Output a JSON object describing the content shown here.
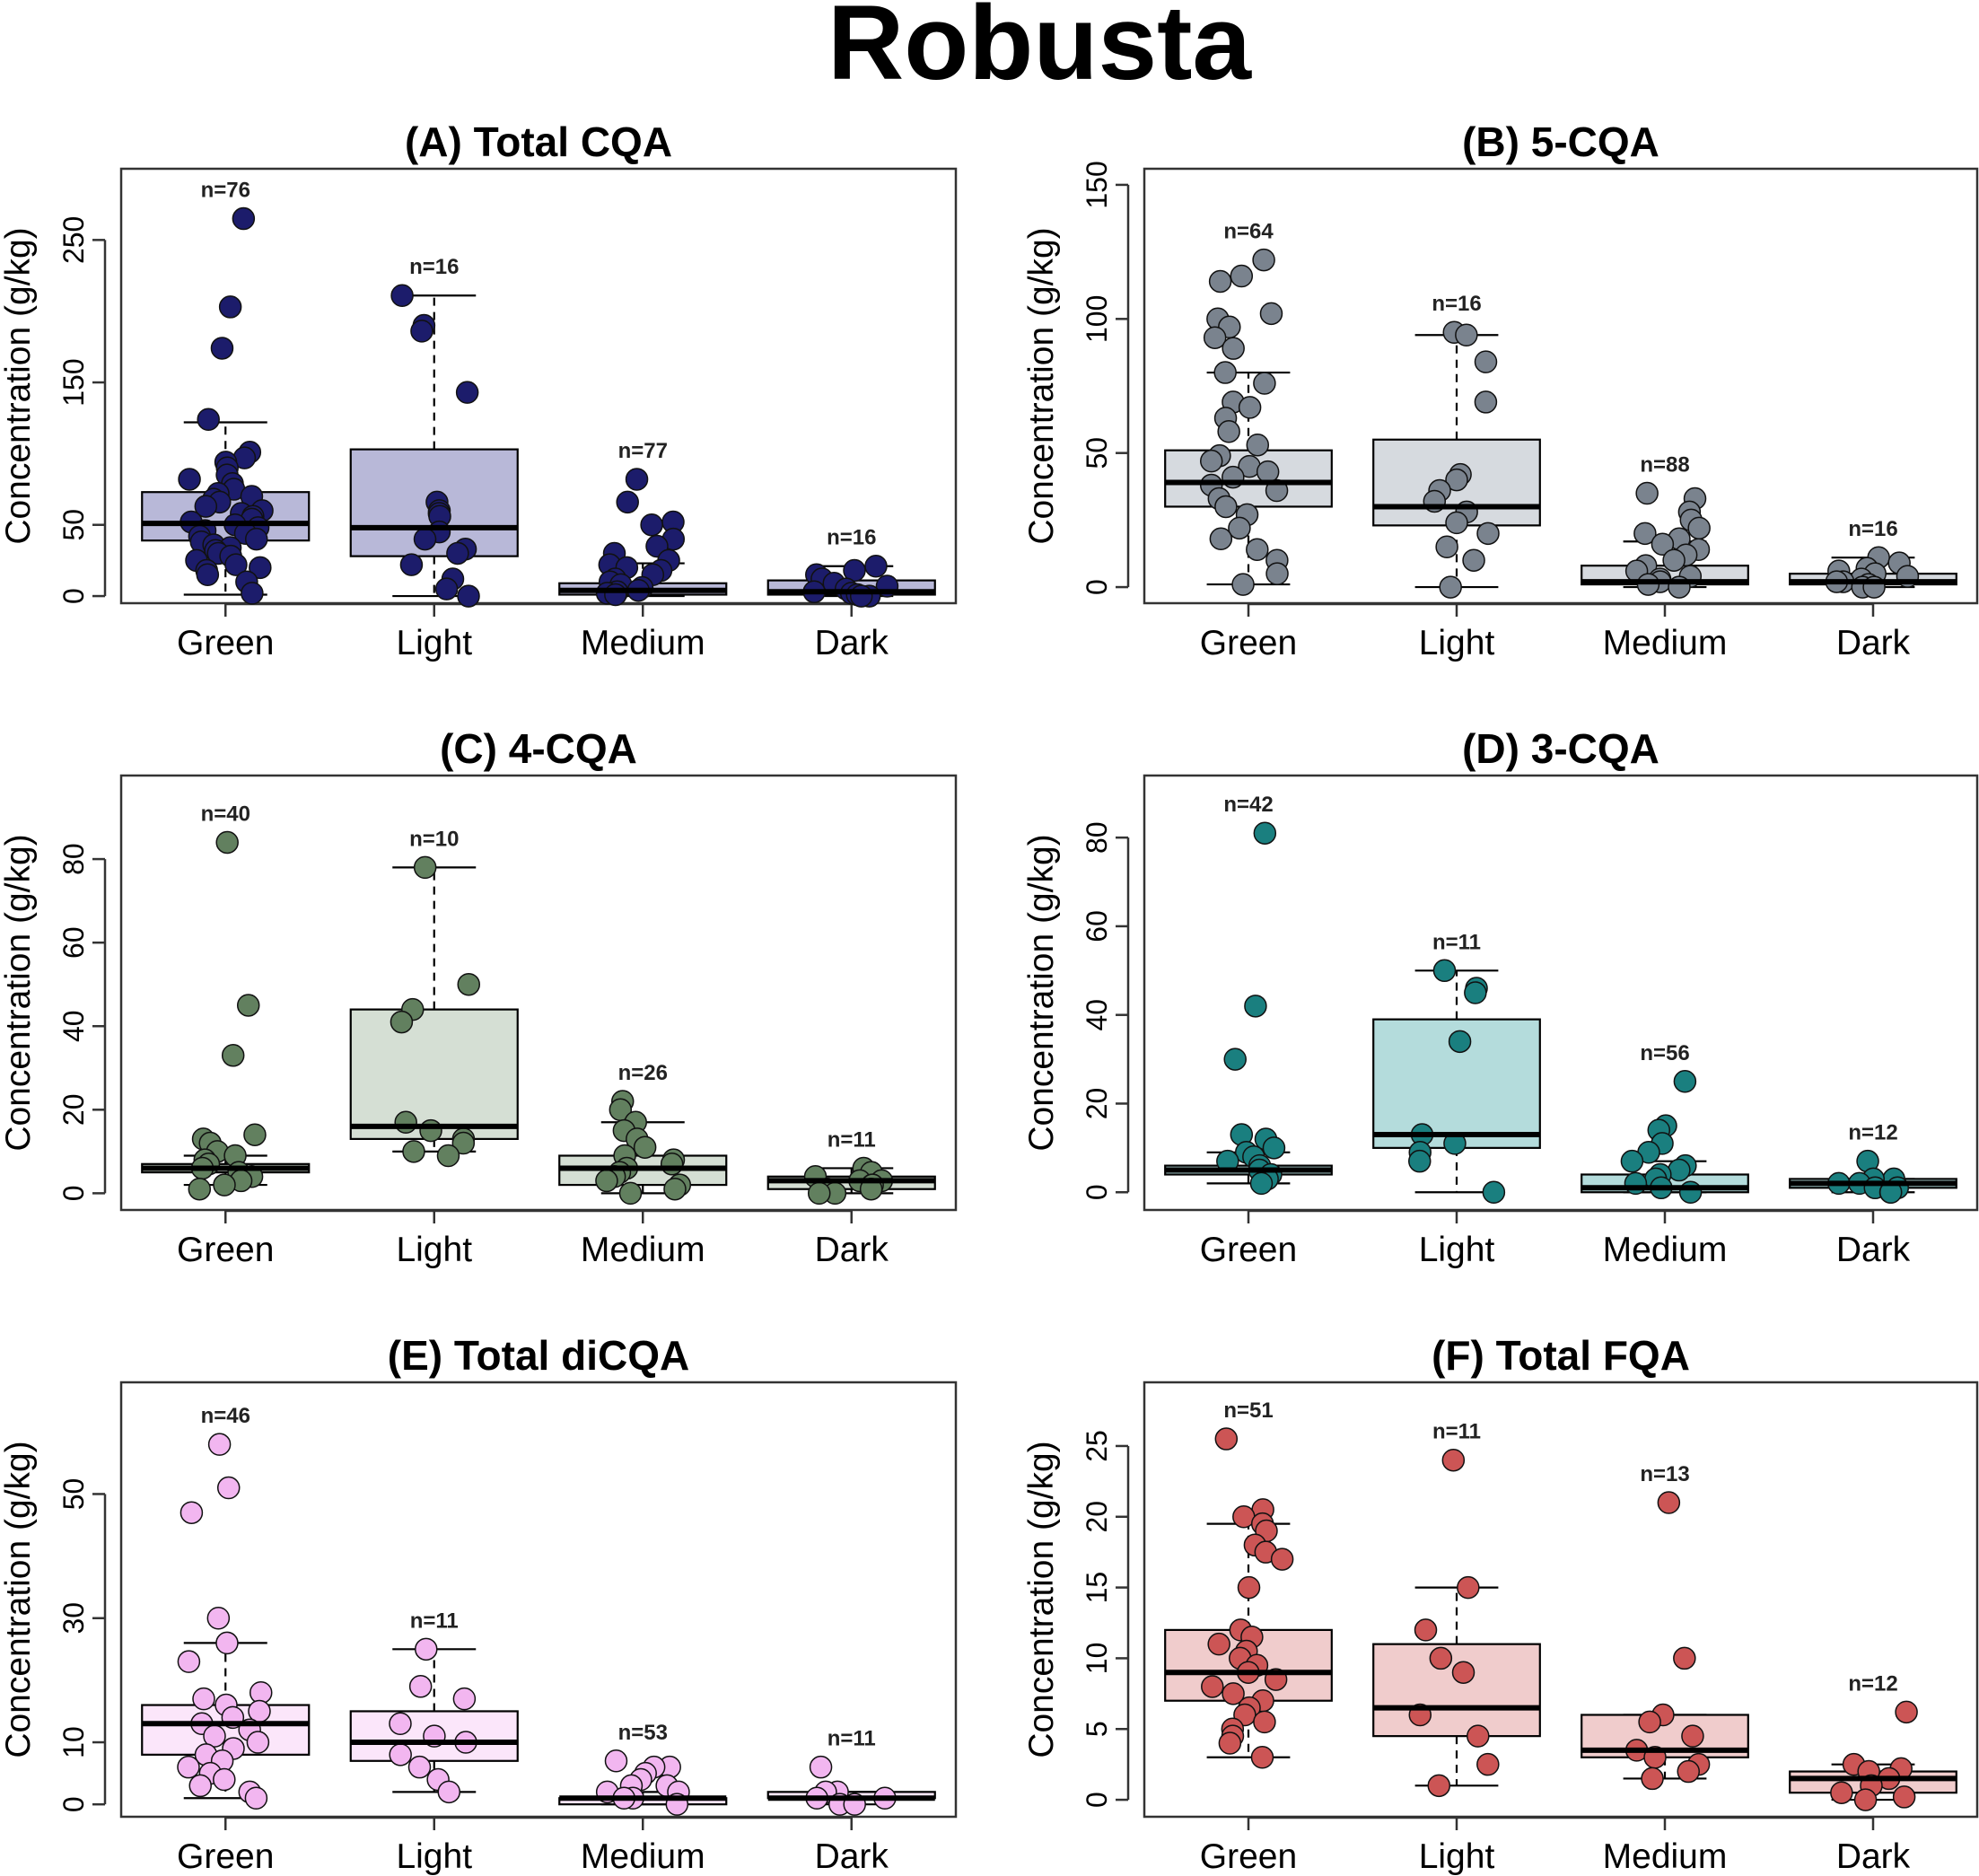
{
  "figure": {
    "title": "Robusta"
  },
  "chart_data": [
    {
      "type": "box",
      "title": "(A) Total CQA",
      "ylabel": "Concentration (g/kg)",
      "categories": [
        "Green",
        "Light",
        "Medium",
        "Dark"
      ],
      "yticks": [
        0,
        50,
        150,
        250
      ],
      "ylim": [
        -5,
        300
      ],
      "point_color": "#1c1c6b",
      "box_fill": "#b8b8d8",
      "boxes": [
        {
          "n": "n=76",
          "whisker_low": 1,
          "q1": 39,
          "median": 51,
          "q3": 73,
          "whisker_high": 122,
          "points": [
            265,
            203,
            174,
            124,
            101,
            97,
            94,
            90,
            85,
            82,
            79,
            75,
            72,
            70,
            68,
            66,
            63,
            60,
            58,
            56,
            54,
            52,
            50,
            48,
            46,
            44,
            42,
            40,
            38,
            36,
            34,
            32,
            30,
            28,
            25,
            22,
            20,
            18,
            15,
            10,
            2
          ]
        },
        {
          "n": "n=16",
          "whisker_low": 0,
          "q1": 28,
          "median": 48,
          "q3": 103,
          "whisker_high": 211,
          "points": [
            211,
            190,
            186,
            143,
            66,
            60,
            58,
            56,
            45,
            40,
            33,
            30,
            22,
            12,
            5,
            0
          ]
        },
        {
          "n": "n=77",
          "whisker_low": 0,
          "q1": 1,
          "median": 4,
          "q3": 9,
          "whisker_high": 23,
          "points": [
            82,
            66,
            52,
            50,
            40,
            35,
            30,
            25,
            22,
            20,
            18,
            15,
            12,
            10,
            8,
            6,
            4,
            3,
            2,
            1
          ]
        },
        {
          "n": "n=16",
          "whisker_low": 0,
          "q1": 1,
          "median": 3,
          "q3": 11,
          "whisker_high": 21,
          "points": [
            21,
            18,
            15,
            12,
            9,
            7,
            5,
            3,
            2,
            1,
            0,
            0
          ]
        }
      ]
    },
    {
      "type": "box",
      "title": "(B) 5-CQA",
      "ylabel": "Concentration (g/kg)",
      "categories": [
        "Green",
        "Light",
        "Medium",
        "Dark"
      ],
      "yticks": [
        0,
        50,
        100,
        150
      ],
      "ylim": [
        -6,
        156
      ],
      "point_color": "#7a838e",
      "box_fill": "#d6dadf",
      "boxes": [
        {
          "n": "n=64",
          "whisker_low": 1,
          "q1": 30,
          "median": 39,
          "q3": 51,
          "whisker_high": 80,
          "points": [
            122,
            116,
            114,
            102,
            100,
            97,
            93,
            89,
            80,
            76,
            69,
            67,
            63,
            58,
            53,
            49,
            47,
            45,
            43,
            41,
            38,
            36,
            33,
            30,
            27,
            22,
            18,
            14,
            10,
            5,
            1
          ]
        },
        {
          "n": "n=16",
          "whisker_low": 0,
          "q1": 23,
          "median": 30,
          "q3": 55,
          "whisker_high": 94,
          "points": [
            95,
            94,
            84,
            69,
            42,
            40,
            36,
            32,
            28,
            24,
            20,
            15,
            10,
            0
          ]
        },
        {
          "n": "n=88",
          "whisker_low": 0,
          "q1": 1,
          "median": 2,
          "q3": 8,
          "whisker_high": 17,
          "points": [
            35,
            33,
            28,
            25,
            22,
            20,
            18,
            16,
            14,
            12,
            10,
            8,
            6,
            4,
            3,
            2,
            1,
            0
          ]
        },
        {
          "n": "n=16",
          "whisker_low": 0,
          "q1": 1,
          "median": 2,
          "q3": 5,
          "whisker_high": 11,
          "points": [
            11,
            9,
            7,
            6,
            5,
            4,
            3,
            2,
            2,
            1,
            0,
            0
          ]
        }
      ]
    },
    {
      "type": "box",
      "title": "(C) 4-CQA",
      "ylabel": "Concentration (g/kg)",
      "categories": [
        "Green",
        "Light",
        "Medium",
        "Dark"
      ],
      "yticks": [
        0,
        20,
        40,
        60,
        80
      ],
      "ylim": [
        -4,
        100
      ],
      "point_color": "#62805f",
      "box_fill": "#d5dfd4",
      "boxes": [
        {
          "n": "n=40",
          "whisker_low": 2,
          "q1": 5,
          "median": 6,
          "q3": 7,
          "whisker_high": 9,
          "points": [
            84,
            45,
            33,
            14,
            13,
            12,
            10,
            9,
            8,
            7,
            6,
            5,
            4,
            3,
            2,
            1
          ]
        },
        {
          "n": "n=10",
          "whisker_low": 10,
          "q1": 13,
          "median": 16,
          "q3": 44,
          "whisker_high": 78,
          "points": [
            78,
            50,
            44,
            41,
            17,
            15,
            13,
            12,
            10,
            9
          ]
        },
        {
          "n": "n=26",
          "whisker_low": 0,
          "q1": 2,
          "median": 6,
          "q3": 9,
          "whisker_high": 17,
          "points": [
            22,
            20,
            17,
            15,
            13,
            11,
            9,
            8,
            7,
            6,
            5,
            4,
            3,
            2,
            1,
            0
          ]
        },
        {
          "n": "n=11",
          "whisker_low": 0,
          "q1": 1,
          "median": 3,
          "q3": 4,
          "whisker_high": 6,
          "points": [
            6,
            5,
            4,
            3,
            3,
            2,
            2,
            1,
            1,
            0,
            0
          ]
        }
      ]
    },
    {
      "type": "box",
      "title": "(D) 3-CQA",
      "ylabel": "Concentration (g/kg)",
      "categories": [
        "Green",
        "Light",
        "Medium",
        "Dark"
      ],
      "yticks": [
        0,
        20,
        40,
        60,
        80
      ],
      "ylim": [
        -4,
        94
      ],
      "point_color": "#1a7f7f",
      "box_fill": "#b4dcdc",
      "boxes": [
        {
          "n": "n=42",
          "whisker_low": 2,
          "q1": 4,
          "median": 5,
          "q3": 6,
          "whisker_high": 9,
          "points": [
            81,
            42,
            30,
            13,
            12,
            10,
            9,
            8,
            7,
            6,
            5,
            4,
            3,
            2
          ]
        },
        {
          "n": "n=11",
          "whisker_low": 0,
          "q1": 10,
          "median": 13,
          "q3": 39,
          "whisker_high": 50,
          "points": [
            50,
            46,
            45,
            34,
            13,
            11,
            9,
            7,
            0
          ]
        },
        {
          "n": "n=56",
          "whisker_low": 0,
          "q1": 0,
          "median": 1,
          "q3": 4,
          "whisker_high": 7,
          "points": [
            25,
            15,
            14,
            11,
            9,
            7,
            6,
            5,
            4,
            3,
            2,
            1,
            0
          ]
        },
        {
          "n": "n=12",
          "whisker_low": 0,
          "q1": 1,
          "median": 2,
          "q3": 3,
          "whisker_high": 3,
          "points": [
            7,
            3,
            3,
            2,
            2,
            1,
            1,
            0,
            0
          ]
        }
      ]
    },
    {
      "type": "box",
      "title": "(E) Total diCQA",
      "ylabel": "Concentration (g/kg)",
      "categories": [
        "Green",
        "Light",
        "Medium",
        "Dark"
      ],
      "yticks": [
        0,
        10,
        30,
        50
      ],
      "ylim": [
        -2,
        68
      ],
      "point_color": "#f2b6f0",
      "box_fill": "#fbe6fa",
      "boxes": [
        {
          "n": "n=46",
          "whisker_low": 1,
          "q1": 8,
          "median": 13,
          "q3": 16,
          "whisker_high": 26,
          "points": [
            58,
            51,
            47,
            30,
            26,
            23,
            18,
            17,
            16,
            15,
            14,
            13,
            12,
            11,
            10,
            9,
            8,
            7,
            6,
            5,
            4,
            3,
            2,
            1
          ]
        },
        {
          "n": "n=11",
          "whisker_low": 2,
          "q1": 7,
          "median": 10,
          "q3": 15,
          "whisker_high": 25,
          "points": [
            25,
            19,
            17,
            13,
            11,
            10,
            8,
            6,
            4,
            2
          ]
        },
        {
          "n": "n=53",
          "whisker_low": 0,
          "q1": 0,
          "median": 1,
          "q3": 1,
          "whisker_high": 2,
          "points": [
            7,
            6,
            6,
            5,
            4,
            3,
            3,
            2,
            2,
            1,
            1,
            0
          ]
        },
        {
          "n": "n=11",
          "whisker_low": 0,
          "q1": 1,
          "median": 1,
          "q3": 2,
          "whisker_high": 2,
          "points": [
            6,
            2,
            2,
            1,
            1,
            0,
            0
          ]
        }
      ]
    },
    {
      "type": "box",
      "title": "(F) Total FQA",
      "ylabel": "Concentration (g/kg)",
      "categories": [
        "Green",
        "Light",
        "Medium",
        "Dark"
      ],
      "yticks": [
        0,
        5,
        10,
        15,
        20,
        25
      ],
      "ylim": [
        -1.2,
        29.5
      ],
      "point_color": "#cc5555",
      "box_fill": "#f0cccc",
      "boxes": [
        {
          "n": "n=51",
          "whisker_low": 3,
          "q1": 7,
          "median": 9,
          "q3": 12,
          "whisker_high": 19.5,
          "points": [
            25.5,
            20.5,
            20,
            19.5,
            19,
            18,
            17.5,
            17,
            15,
            12,
            11.5,
            11,
            10.5,
            10,
            9.5,
            9,
            8.5,
            8,
            7.5,
            7,
            6.5,
            6,
            5.5,
            5,
            4.5,
            4,
            3
          ]
        },
        {
          "n": "n=11",
          "whisker_low": 1,
          "q1": 4.5,
          "median": 6.5,
          "q3": 11,
          "whisker_high": 15,
          "points": [
            24,
            15,
            12,
            10,
            9,
            6,
            4.5,
            2.5,
            1
          ]
        },
        {
          "n": "n=13",
          "whisker_low": 1.5,
          "q1": 3,
          "median": 3.5,
          "q3": 6,
          "whisker_high": 6,
          "points": [
            21,
            10,
            6,
            5.5,
            4.5,
            3.5,
            3,
            2.5,
            2,
            1.5
          ]
        },
        {
          "n": "n=12",
          "whisker_low": 0,
          "q1": 0.5,
          "median": 1.5,
          "q3": 2,
          "whisker_high": 2.5,
          "points": [
            6.2,
            2.5,
            2.2,
            2,
            1.5,
            1,
            0.5,
            0.2,
            0
          ]
        }
      ]
    }
  ]
}
